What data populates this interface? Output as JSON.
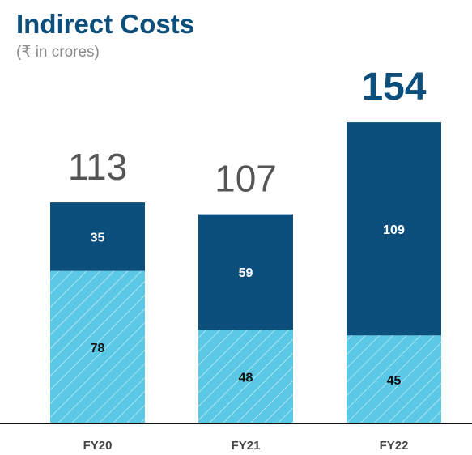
{
  "chart_data": {
    "type": "stacked_bar",
    "title": "Indirect Costs",
    "subtitle": "(₹ in crores)",
    "categories": [
      "FY20",
      "FY21",
      "FY22"
    ],
    "series": [
      {
        "color": "#5bc8e6",
        "values": [
          78,
          48,
          45
        ]
      },
      {
        "color": "#0d4f7c",
        "values": [
          35,
          59,
          109
        ]
      }
    ],
    "totals": [
      113,
      107,
      154
    ]
  }
}
